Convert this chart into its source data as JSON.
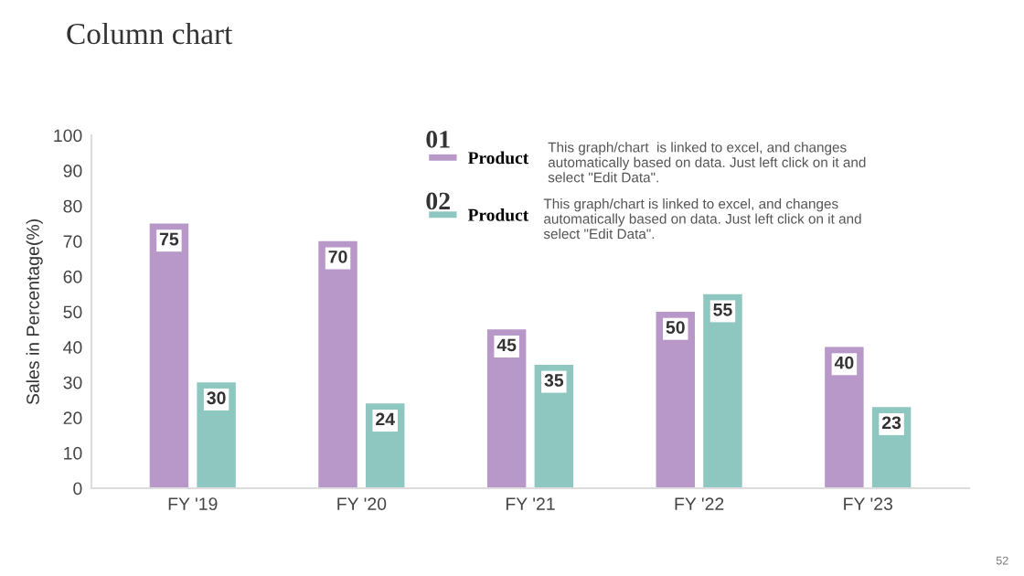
{
  "chart_data": {
    "type": "bar",
    "title": "Column chart",
    "ylabel": "Sales in Percentage(%)",
    "categories": [
      "FY '19",
      "FY '20",
      "FY '21",
      "FY '22",
      "FY '23"
    ],
    "series": [
      {
        "name": "Product",
        "color": "#b898c8",
        "values": [
          75,
          70,
          45,
          50,
          40
        ]
      },
      {
        "name": "Product",
        "color": "#8ec7c0",
        "values": [
          30,
          24,
          35,
          55,
          23
        ]
      }
    ],
    "ylim": [
      0,
      100
    ],
    "yticks": [
      0,
      10,
      20,
      30,
      40,
      50,
      60,
      70,
      80,
      90,
      100
    ],
    "data_labels": true,
    "legend": "top",
    "grid": false,
    "annotations": [
      "01",
      "02",
      "This graph/chart  is linked to excel, and changes automatically based on data. Just left click on it and select \"Edit Data\".",
      "This graph/chart is linked to excel, and changes automatically based on data. Just left click on it and select \"Edit Data\".",
      "52"
    ]
  }
}
